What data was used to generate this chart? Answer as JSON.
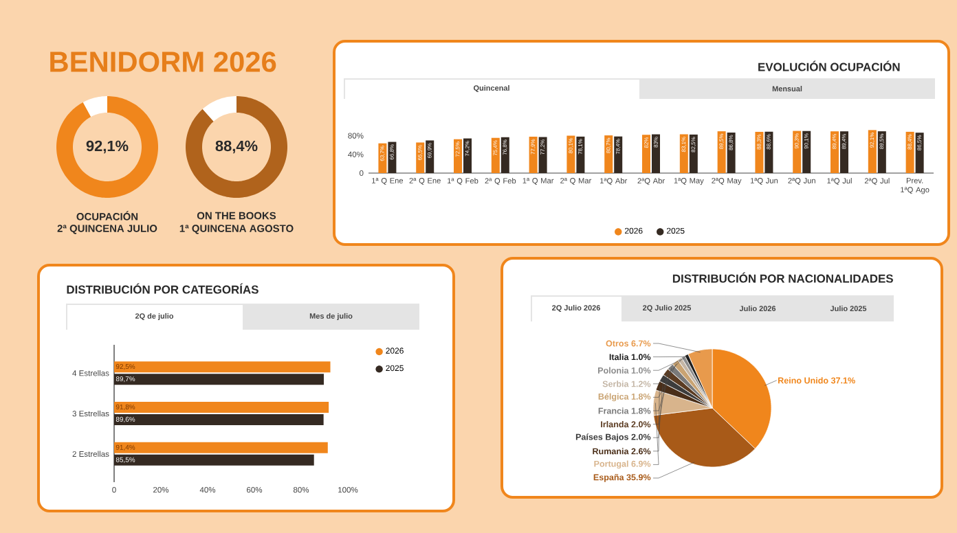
{
  "chart_data": [
    {
      "type": "other",
      "title": "BENIDORM 2026"
    },
    {
      "type": "donut",
      "categories": [
        null,
        null
      ],
      "values": [
        92.1,
        7.9
      ],
      "colors": [
        "#f0861c",
        "#ffffff"
      ],
      "value_labels": [
        "92,1%",
        null
      ],
      "annotations": [
        "OCUPACIÓN",
        "2ª QUINCENA JULIO"
      ]
    },
    {
      "type": "donut",
      "categories": [
        null,
        null
      ],
      "values": [
        88.4,
        11.6
      ],
      "colors": [
        "#b0631c",
        "#ffffff"
      ],
      "value_labels": [
        "88,4%",
        null
      ],
      "annotations": [
        "ON THE BOOKS",
        "1ª QUINCENA AGOSTO"
      ]
    },
    {
      "type": "bar",
      "title": "EVOLUCIÓN OCUPACIÓN",
      "annotations": [
        "Quincenal",
        "Mensual"
      ],
      "categories": [
        "1ª Q Ene",
        "2ª Q Ene",
        "1ª Q Feb",
        "2ª Q Feb",
        "1ª Q Mar",
        "2ª Q Mar",
        "1ªQ Abr",
        "2ªQ Abr",
        "1ªQ May",
        "2ªQ May",
        "1ªQ Jun",
        "2ªQ Jun",
        "1ªQ Jul",
        "2ªQ Jul",
        "Prev. 1ªQ Ago"
      ],
      "series": [
        {
          "name": "2026",
          "color": "#f0861c",
          "values": [
            63.7,
            65.5,
            72.5,
            75.4,
            77.9,
            80.1,
            80.7,
            82,
            83.1,
            89.5,
            88.3,
            90.3,
            89.4,
            92.1,
            88.4
          ],
          "value_labels": [
            "63,7%",
            "65,5%",
            "72,5%",
            "75,4%",
            "77,9%",
            "80,1%",
            "80,7%",
            "82%",
            "83,1%",
            "89,5%",
            "88,3%",
            "90,3%",
            "89,4%",
            "92,1%",
            "88,4%"
          ]
        },
        {
          "name": "2025",
          "color": "#352a22",
          "values": [
            66.8,
            69.9,
            74.2,
            76.8,
            77.2,
            78.1,
            78.4,
            83,
            82.5,
            86.8,
            88.6,
            90.1,
            89.4,
            89.5,
            86.5
          ],
          "value_labels": [
            "66,8%",
            "69,9%",
            "74,2%",
            "76,8%",
            "77,2%",
            "78,1%",
            "78,4%",
            "83%",
            "82,5%",
            "86,8%",
            "88,6%",
            "90,1%",
            "89,4%",
            "89,5%",
            "86,5%"
          ]
        }
      ],
      "ylim": [
        0,
        100
      ],
      "yticks": [
        0,
        {
          "value": 40,
          "label": "40%"
        },
        {
          "value": 80,
          "label": "80%"
        }
      ],
      "legend": "bottom"
    },
    {
      "type": "bar",
      "orientation": "horizontal",
      "title": "DISTRIBUCIÓN POR CATEGORÍAS",
      "annotations": [
        "2Q de julio",
        "Mes de julio"
      ],
      "categories": [
        "4 Estrellas",
        "3 Estrellas",
        "2 Estrellas"
      ],
      "series": [
        {
          "name": "2026",
          "color": "#f0861c",
          "values": [
            92.5,
            91.8,
            91.4
          ],
          "value_labels": [
            "92,5%",
            "91,8%",
            "91,4%"
          ]
        },
        {
          "name": "2025",
          "color": "#352a22",
          "values": [
            89.7,
            89.6,
            85.5
          ],
          "value_labels": [
            "89,7%",
            "89,6%",
            "85,5%"
          ]
        }
      ],
      "xlim": [
        0,
        100
      ],
      "xticks": [
        0,
        {
          "value": 20,
          "label": "20%"
        },
        {
          "value": 40,
          "label": "40%"
        },
        {
          "value": 60,
          "label": "60%"
        },
        {
          "value": 80,
          "label": "80%"
        },
        {
          "value": 100,
          "label": "100%"
        }
      ],
      "legend": "top right"
    },
    {
      "type": "pie",
      "title": "DISTRIBUCIÓN POR NACIONALIDADES",
      "annotations": [
        "2Q Julio 2026",
        "2Q Julio 2025",
        "Julio 2026",
        "Julio 2025"
      ],
      "categories": [
        "Reino Unido",
        "España",
        "Portugal",
        "Rumania",
        "Países Bajos",
        "Irlanda",
        "Francia",
        "Bélgica",
        "Serbia",
        "Polonia",
        "Italia",
        "Otros"
      ],
      "values": [
        37.1,
        35.9,
        6.9,
        2.6,
        2.0,
        2.0,
        1.8,
        1.8,
        1.2,
        1.0,
        1.0,
        6.7
      ],
      "colors": [
        "#f0861c",
        "#a85a18",
        "#d8b48c",
        "#4a2e18",
        "#3c3c3c",
        "#5c3c22",
        "#7a7a7a",
        "#c9a372",
        "#c4b6a6",
        "#8c8c8c",
        "#202020",
        "#e89a4c"
      ],
      "value_labels": [
        "37.1%",
        "35.9%",
        "6.9%",
        "2.6%",
        "2.0%",
        "2.0%",
        "1.8%",
        "1.8%",
        "1.2%",
        "1.0%",
        "1.0%",
        "6.7%"
      ]
    }
  ]
}
